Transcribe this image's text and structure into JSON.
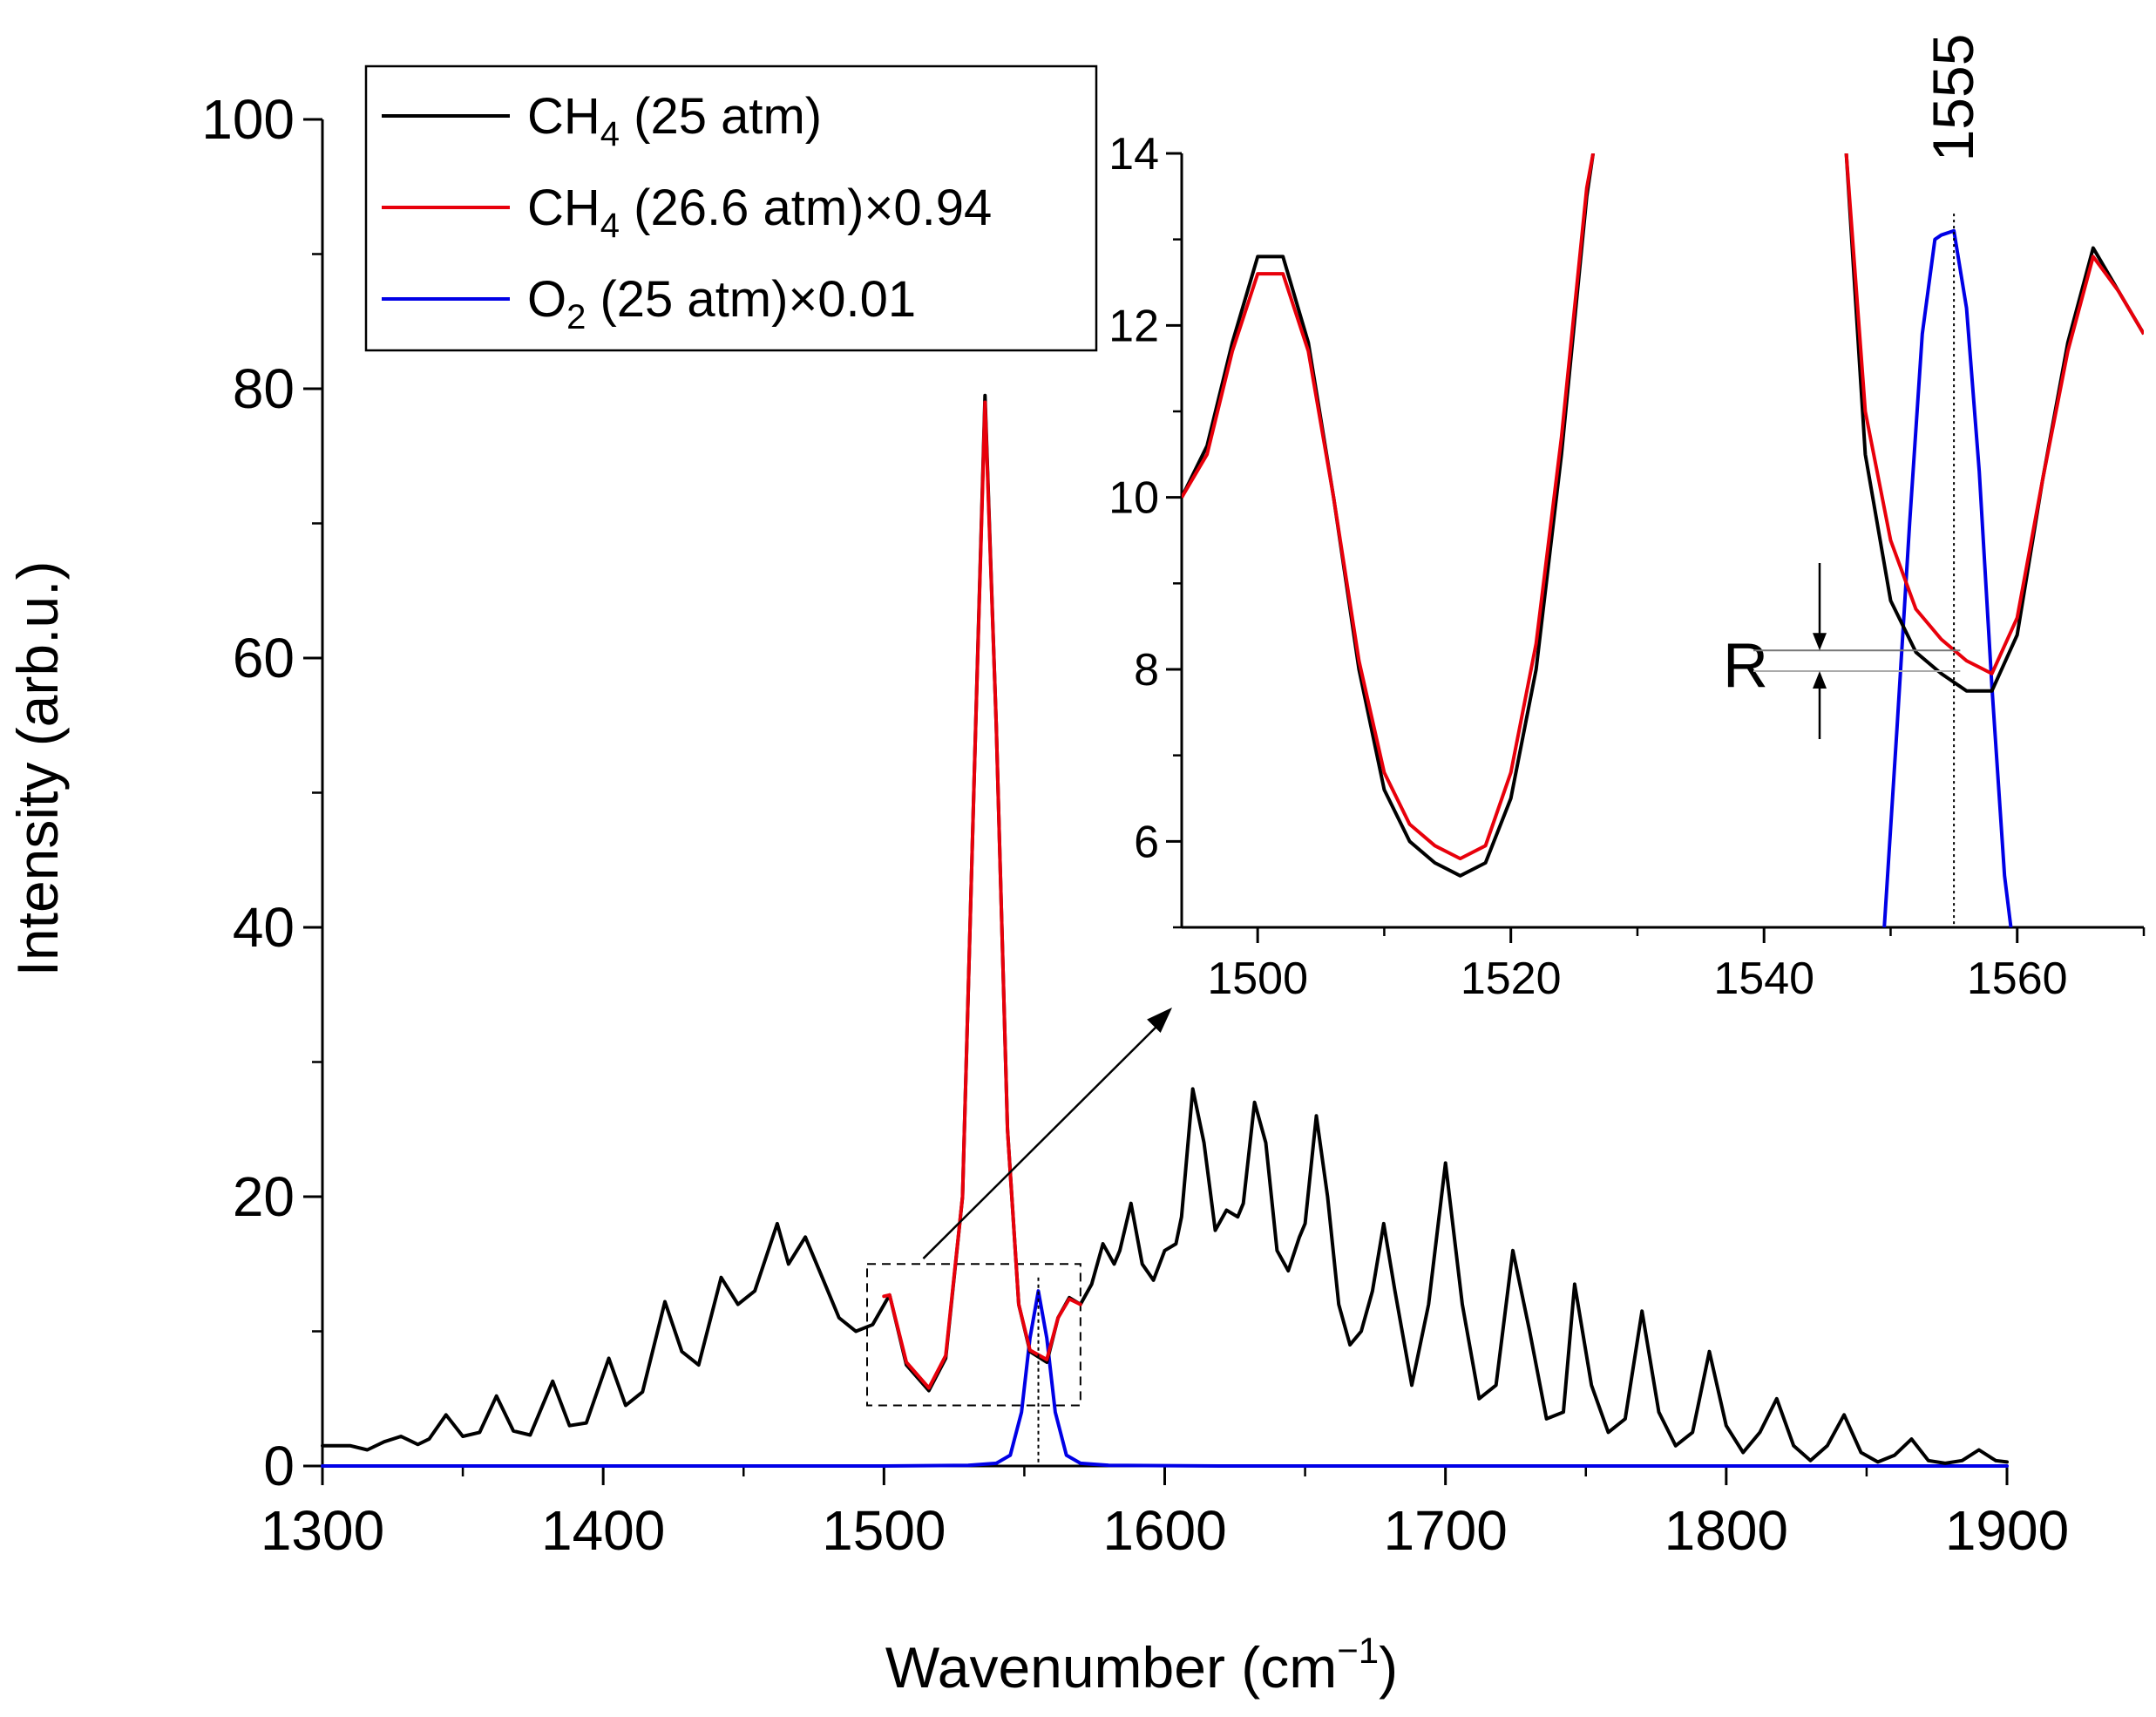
{
  "chart_data": [
    {
      "panel": "main",
      "type": "line",
      "xlabel": "Wavenumber (cm",
      "xlabel_sup": "−1",
      "xlabel_end": ")",
      "ylabel": "Intensity (arb.u.)",
      "xlim": [
        1300,
        1900
      ],
      "ylim": [
        0,
        100
      ],
      "xticks": [
        1300,
        1400,
        1500,
        1600,
        1700,
        1800,
        1900
      ],
      "yticks": [
        0,
        20,
        40,
        60,
        80,
        100
      ],
      "legend_position": "top-left",
      "legend": [
        {
          "text": "CH",
          "sub": "4",
          "rest": " (25 atm)",
          "color": "#000000"
        },
        {
          "text": "CH",
          "sub": "4",
          "rest": " (26.6 atm)×0.94",
          "color": "#e8000b"
        },
        {
          "text": "O",
          "sub": "2",
          "rest": " (25 atm)×0.01",
          "color": "#0000e6"
        }
      ],
      "series": [
        {
          "name": "CH4 (25 atm)",
          "color": "#000000",
          "x": [
            1300,
            1310,
            1316,
            1322,
            1328,
            1334,
            1338,
            1344,
            1350,
            1356,
            1362,
            1368,
            1374,
            1382,
            1388,
            1394,
            1402,
            1408,
            1414,
            1422,
            1428,
            1434,
            1442,
            1448,
            1454,
            1462,
            1466,
            1472,
            1478,
            1484,
            1490,
            1496,
            1502,
            1508,
            1516,
            1522,
            1528,
            1532,
            1536,
            1540,
            1544,
            1548,
            1552,
            1558,
            1562,
            1566,
            1570,
            1574,
            1578,
            1582,
            1584,
            1588,
            1592,
            1596,
            1600,
            1604,
            1606,
            1610,
            1614,
            1618,
            1622,
            1626,
            1628,
            1632,
            1636,
            1640,
            1644,
            1648,
            1650,
            1654,
            1658,
            1662,
            1666,
            1670,
            1674,
            1678,
            1682,
            1688,
            1694,
            1700,
            1706,
            1712,
            1718,
            1724,
            1730,
            1736,
            1742,
            1746,
            1752,
            1758,
            1764,
            1770,
            1776,
            1782,
            1788,
            1794,
            1800,
            1806,
            1812,
            1818,
            1824,
            1830,
            1836,
            1842,
            1848,
            1854,
            1860,
            1866,
            1872,
            1878,
            1884,
            1890,
            1896,
            1900
          ],
          "y": [
            1.5,
            1.5,
            1.2,
            1.8,
            2.2,
            1.6,
            2.0,
            3.8,
            2.2,
            2.5,
            5.2,
            2.6,
            2.3,
            6.3,
            3.0,
            3.2,
            8.0,
            4.5,
            5.5,
            12.2,
            8.5,
            7.5,
            14.0,
            12.0,
            13.0,
            18.0,
            15.0,
            17.0,
            14.0,
            11.0,
            10.0,
            10.5,
            12.7,
            7.5,
            5.6,
            8.0,
            20.0,
            50.0,
            79.5,
            55.0,
            25.0,
            12.0,
            8.5,
            7.7,
            11.0,
            12.5,
            12.0,
            13.5,
            16.5,
            15.0,
            16.0,
            19.5,
            15.0,
            13.8,
            16.0,
            16.5,
            18.5,
            28.0,
            24.0,
            17.5,
            19.0,
            18.5,
            19.5,
            27.0,
            24.0,
            16.0,
            14.5,
            17.0,
            18.0,
            26.0,
            20.0,
            12.0,
            9.0,
            10.0,
            13.0,
            18.0,
            13.0,
            6.0,
            12.0,
            22.5,
            12.0,
            5.0,
            6.0,
            16.0,
            10.0,
            3.5,
            4.0,
            13.5,
            6.0,
            2.5,
            3.5,
            11.5,
            4.0,
            1.5,
            2.5,
            8.5,
            3.0,
            1.0,
            2.5,
            5.0,
            1.5,
            0.4,
            1.5,
            3.8,
            1.0,
            0.3,
            0.8,
            2.0,
            0.4,
            0.2,
            0.4,
            1.2,
            0.4,
            0.3
          ]
        },
        {
          "name": "CH4 (26.6 atm)x0.94",
          "color": "#e8000b",
          "x": [
            1500,
            1502,
            1508,
            1516,
            1522,
            1528,
            1532,
            1536,
            1540,
            1544,
            1548,
            1552,
            1558,
            1562,
            1566,
            1570
          ],
          "y": [
            12.6,
            12.7,
            7.7,
            5.8,
            8.2,
            20.0,
            50.0,
            79.0,
            55.0,
            25.0,
            12.0,
            8.6,
            7.9,
            11.0,
            12.4,
            12.0
          ]
        },
        {
          "name": "O2 (25 atm)x0.01",
          "color": "#0000e6",
          "x": [
            1300,
            1500,
            1530,
            1540,
            1545,
            1549,
            1552,
            1555,
            1558,
            1561,
            1565,
            1570,
            1580,
            1620,
            1900
          ],
          "y": [
            0,
            0,
            0.05,
            0.2,
            0.8,
            4.0,
            9.5,
            13.0,
            9.5,
            4.0,
            0.8,
            0.2,
            0.05,
            0,
            0
          ]
        }
      ],
      "marker_line_x": 1555,
      "zoom_box": {
        "x": [
          1494,
          1570
        ],
        "y": [
          4.5,
          15
        ]
      }
    },
    {
      "panel": "inset",
      "type": "line",
      "xlim": [
        1494,
        1570
      ],
      "ylim": [
        5,
        14
      ],
      "xticks": [
        1500,
        1520,
        1540,
        1560
      ],
      "yticks": [
        6,
        8,
        10,
        12,
        14
      ],
      "annotation_peak": "1555",
      "annotation_ratio": "R",
      "marker_line_x": 1555,
      "series": [
        {
          "name": "CH4 (25 atm)",
          "color": "#000000",
          "x": [
            1494,
            1496,
            1498,
            1500,
            1502,
            1504,
            1506,
            1508,
            1510,
            1512,
            1514,
            1516,
            1518,
            1520,
            1522,
            1524,
            1526,
            1526.5,
            1546.5,
            1548,
            1550,
            1552,
            1554,
            1556,
            1558,
            1560,
            1562,
            1564,
            1566,
            1568,
            1570
          ],
          "y": [
            10.0,
            10.6,
            11.8,
            12.8,
            12.8,
            11.8,
            10.0,
            8.0,
            6.6,
            6.0,
            5.75,
            5.6,
            5.75,
            6.5,
            8.0,
            10.5,
            13.5,
            14.0,
            14.0,
            10.5,
            8.8,
            8.2,
            7.95,
            7.75,
            7.75,
            8.4,
            10.2,
            11.8,
            12.9,
            12.4,
            11.9
          ]
        },
        {
          "name": "CH4 (26.6 atm)x0.94",
          "color": "#e8000b",
          "x": [
            1494,
            1496,
            1498,
            1500,
            1502,
            1504,
            1506,
            1508,
            1510,
            1512,
            1514,
            1516,
            1518,
            1520,
            1522,
            1524,
            1526,
            1526.5,
            1546.5,
            1548,
            1550,
            1552,
            1554,
            1556,
            1558,
            1560,
            1562,
            1564,
            1566,
            1568,
            1570
          ],
          "y": [
            10.0,
            10.5,
            11.7,
            12.6,
            12.6,
            11.7,
            10.0,
            8.1,
            6.8,
            6.2,
            5.95,
            5.8,
            5.95,
            6.8,
            8.3,
            10.7,
            13.6,
            14.0,
            14.0,
            11.0,
            9.5,
            8.7,
            8.35,
            8.1,
            7.95,
            8.6,
            10.2,
            11.7,
            12.8,
            12.4,
            11.9
          ]
        },
        {
          "name": "O2 (25 atm)x0.01",
          "color": "#0000e6",
          "x": [
            1549.5,
            1550.5,
            1551.5,
            1552.5,
            1553.5,
            1554,
            1555,
            1556,
            1557,
            1558,
            1559,
            1559.5
          ],
          "y": [
            5.0,
            7.3,
            9.7,
            11.9,
            13.0,
            13.05,
            13.1,
            12.2,
            10.3,
            7.8,
            5.6,
            5.0
          ]
        }
      ]
    }
  ]
}
